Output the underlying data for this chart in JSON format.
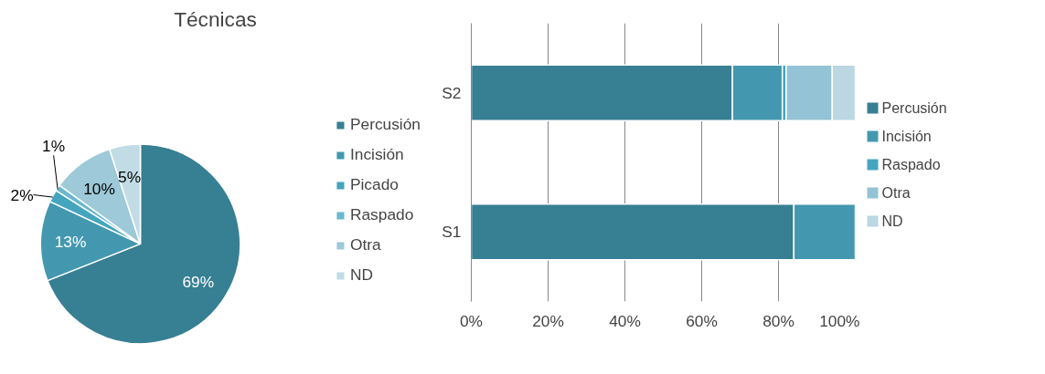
{
  "chart_data": [
    {
      "type": "pie",
      "title": "Técnicas",
      "categories": [
        "Percusión",
        "Incisión",
        "Picado",
        "Raspado",
        "Otra",
        "ND"
      ],
      "values": [
        69,
        13,
        2,
        1,
        10,
        5
      ],
      "colors": [
        "#377f93",
        "#4398b0",
        "#45a5bf",
        "#6ab8cf",
        "#9dc9d8",
        "#c2dce5"
      ],
      "value_labels": [
        "69%",
        "13%",
        "2%",
        "1%",
        "10%",
        "5%"
      ],
      "legend": "right"
    },
    {
      "type": "bar",
      "orientation": "horizontal",
      "stacked": true,
      "categories": [
        "S2",
        "S1"
      ],
      "series": [
        {
          "name": "Percusión",
          "color": "#377f93",
          "values": [
            68,
            84
          ]
        },
        {
          "name": "Incisión",
          "color": "#4398b0",
          "values": [
            13,
            16
          ]
        },
        {
          "name": "Raspado",
          "color": "#45a5bf",
          "values": [
            1,
            null
          ]
        },
        {
          "name": "Otra",
          "color": "#93c3d4",
          "values": [
            12,
            null
          ]
        },
        {
          "name": "ND",
          "color": "#bad7e2",
          "values": [
            6,
            null
          ]
        }
      ],
      "xlim": [
        0,
        100
      ],
      "xticks": [
        {
          "value": 0,
          "label": "0%"
        },
        {
          "value": 20,
          "label": "20%"
        },
        {
          "value": 40,
          "label": "40%"
        },
        {
          "value": 60,
          "label": "60%"
        },
        {
          "value": 80,
          "label": "80%"
        },
        {
          "value": 100,
          "label": "100%"
        }
      ],
      "grid": "x",
      "legend": "right"
    }
  ]
}
